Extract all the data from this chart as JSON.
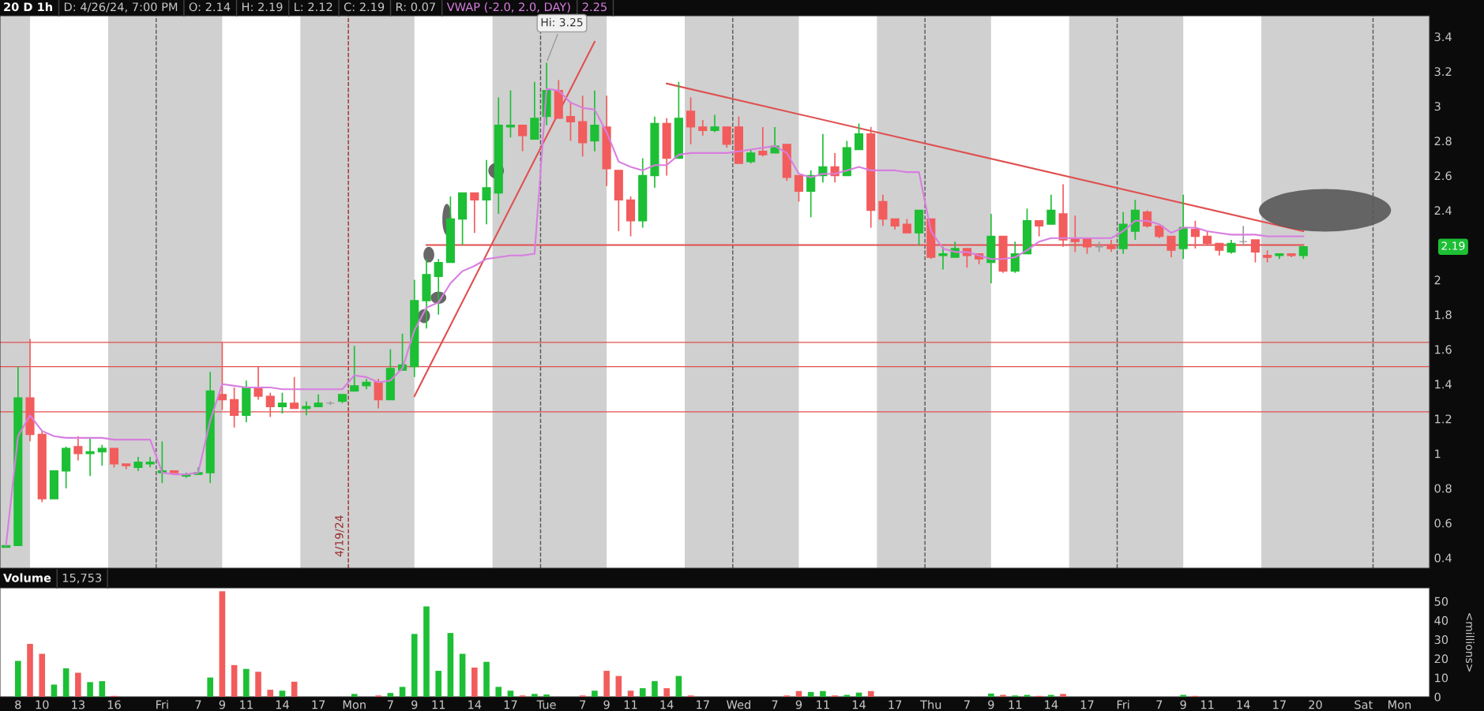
{
  "chart_data": [
    {
      "type": "candlestick",
      "title": "20 D 1h",
      "annotations": [
        "D: 4/26/24, 7:00 PM",
        "O: 2.14",
        "H: 2.19",
        "L: 2.12",
        "C: 2.19",
        "R: 0.07",
        "2.25",
        "2.19",
        "4/19/24",
        "Hi: 3.25"
      ],
      "categories": [
        null,
        null,
        null,
        null,
        null,
        null,
        null,
        null,
        null,
        null,
        null,
        null,
        null,
        null,
        null,
        null,
        null,
        null,
        null,
        null,
        null,
        null,
        null,
        null,
        null,
        null,
        null,
        null,
        null,
        null,
        null,
        null,
        null,
        null,
        null,
        null,
        null,
        null,
        null,
        null,
        null,
        null,
        null,
        null,
        null,
        null,
        null,
        null,
        null,
        null,
        null,
        null,
        null,
        null,
        null,
        null,
        null,
        null,
        null,
        null,
        null,
        null,
        null,
        null,
        null,
        null,
        null,
        null,
        null,
        null,
        null,
        null,
        null,
        null,
        null,
        null,
        null,
        null,
        null,
        null,
        null,
        null,
        null,
        null,
        null,
        null,
        null,
        null,
        null,
        null,
        null,
        null,
        null,
        null,
        null,
        null,
        null,
        null,
        null,
        null,
        null,
        null,
        null,
        null,
        null,
        null,
        null,
        null,
        null
      ],
      "series": [
        {
          "type": "candlestick",
          "ohlc": [
            [
              0.46,
              0.47,
              0.46,
              0.47
            ],
            [
              0.47,
              1.5,
              0.47,
              1.32
            ],
            [
              1.32,
              1.66,
              1.07,
              1.11
            ],
            [
              1.11,
              1.13,
              0.72,
              0.74
            ],
            [
              0.74,
              0.9,
              0.74,
              0.9
            ],
            [
              0.9,
              1.04,
              0.8,
              1.03
            ],
            [
              1.04,
              1.1,
              0.96,
              1.0
            ],
            [
              1.0,
              1.09,
              0.87,
              1.01
            ],
            [
              1.01,
              1.05,
              0.93,
              1.03
            ],
            [
              1.03,
              1.03,
              0.92,
              0.94
            ],
            [
              0.94,
              0.94,
              0.91,
              0.93
            ],
            [
              0.92,
              0.98,
              0.9,
              0.95
            ],
            [
              0.94,
              0.98,
              0.92,
              0.95
            ],
            [
              0.89,
              1.07,
              0.83,
              0.9
            ],
            [
              0.9,
              0.9,
              0.89,
              0.89
            ],
            [
              0.87,
              0.89,
              0.86,
              0.88
            ],
            [
              0.88,
              0.92,
              0.88,
              0.89
            ],
            [
              0.89,
              1.47,
              0.83,
              1.36
            ],
            [
              1.34,
              1.64,
              1.25,
              1.31
            ],
            [
              1.31,
              1.38,
              1.15,
              1.22
            ],
            [
              1.22,
              1.42,
              1.18,
              1.38
            ],
            [
              1.38,
              1.5,
              1.31,
              1.33
            ],
            [
              1.33,
              1.35,
              1.21,
              1.27
            ],
            [
              1.27,
              1.35,
              1.23,
              1.29
            ],
            [
              1.29,
              1.44,
              1.26,
              1.26
            ],
            [
              1.26,
              1.3,
              1.22,
              1.27
            ],
            [
              1.27,
              1.34,
              1.27,
              1.29
            ],
            [
              1.29,
              1.3,
              1.28,
              1.29
            ],
            [
              1.3,
              1.34,
              1.29,
              1.34
            ],
            [
              1.36,
              1.62,
              1.36,
              1.39
            ],
            [
              1.39,
              1.43,
              1.37,
              1.41
            ],
            [
              1.41,
              1.43,
              1.26,
              1.31
            ],
            [
              1.31,
              1.6,
              1.31,
              1.49
            ],
            [
              1.48,
              1.69,
              1.48,
              1.51
            ],
            [
              1.5,
              2.0,
              1.44,
              1.88
            ],
            [
              1.88,
              2.12,
              1.72,
              2.03
            ],
            [
              2.02,
              2.12,
              1.8,
              2.1
            ],
            [
              2.1,
              2.48,
              2.1,
              2.35
            ],
            [
              2.35,
              2.5,
              2.2,
              2.5
            ],
            [
              2.5,
              2.5,
              2.27,
              2.46
            ],
            [
              2.46,
              2.69,
              2.32,
              2.53
            ],
            [
              2.5,
              3.05,
              2.38,
              2.89
            ],
            [
              2.88,
              3.09,
              2.82,
              2.89
            ],
            [
              2.89,
              2.89,
              2.74,
              2.83
            ],
            [
              2.81,
              3.14,
              2.81,
              2.93
            ],
            [
              2.94,
              3.25,
              2.89,
              3.09
            ],
            [
              3.09,
              3.15,
              2.93,
              2.93
            ],
            [
              2.94,
              3.02,
              2.8,
              2.91
            ],
            [
              2.91,
              3.06,
              2.71,
              2.79
            ],
            [
              2.8,
              3.09,
              2.74,
              2.89
            ],
            [
              2.88,
              3.06,
              2.54,
              2.64
            ],
            [
              2.63,
              2.63,
              2.28,
              2.46
            ],
            [
              2.46,
              2.48,
              2.25,
              2.34
            ],
            [
              2.34,
              2.7,
              2.3,
              2.6
            ],
            [
              2.6,
              2.94,
              2.53,
              2.9
            ],
            [
              2.9,
              2.93,
              2.6,
              2.7
            ],
            [
              2.7,
              3.14,
              2.7,
              2.93
            ],
            [
              2.97,
              3.05,
              2.78,
              2.88
            ],
            [
              2.88,
              2.92,
              2.83,
              2.86
            ],
            [
              2.86,
              2.95,
              2.85,
              2.88
            ],
            [
              2.88,
              2.88,
              2.76,
              2.78
            ],
            [
              2.88,
              2.94,
              2.67,
              2.67
            ],
            [
              2.68,
              2.75,
              2.67,
              2.73
            ],
            [
              2.74,
              2.88,
              2.71,
              2.72
            ],
            [
              2.73,
              2.88,
              2.73,
              2.77
            ],
            [
              2.78,
              2.78,
              2.57,
              2.59
            ],
            [
              2.6,
              2.6,
              2.45,
              2.51
            ],
            [
              2.51,
              2.63,
              2.36,
              2.6
            ],
            [
              2.6,
              2.84,
              2.56,
              2.65
            ],
            [
              2.65,
              2.73,
              2.56,
              2.6
            ],
            [
              2.6,
              2.8,
              2.6,
              2.76
            ],
            [
              2.75,
              2.9,
              2.75,
              2.84
            ],
            [
              2.84,
              2.88,
              2.3,
              2.4
            ],
            [
              2.45,
              2.49,
              2.31,
              2.35
            ],
            [
              2.35,
              2.35,
              2.29,
              2.31
            ],
            [
              2.32,
              2.35,
              2.27,
              2.27
            ],
            [
              2.27,
              2.4,
              2.2,
              2.4
            ],
            [
              2.35,
              2.35,
              2.12,
              2.13
            ],
            [
              2.14,
              2.19,
              2.06,
              2.15
            ],
            [
              2.13,
              2.22,
              2.13,
              2.18
            ],
            [
              2.18,
              2.18,
              2.07,
              2.14
            ],
            [
              2.15,
              2.15,
              2.09,
              2.12
            ],
            [
              2.1,
              2.38,
              1.98,
              2.25
            ],
            [
              2.25,
              2.25,
              2.04,
              2.05
            ],
            [
              2.05,
              2.22,
              2.04,
              2.15
            ],
            [
              2.15,
              2.41,
              2.15,
              2.34
            ],
            [
              2.34,
              2.34,
              2.25,
              2.31
            ],
            [
              2.32,
              2.49,
              2.32,
              2.4
            ],
            [
              2.38,
              2.55,
              2.19,
              2.23
            ],
            [
              2.24,
              2.37,
              2.16,
              2.22
            ],
            [
              2.24,
              2.24,
              2.15,
              2.19
            ],
            [
              2.19,
              2.22,
              2.16,
              2.19
            ],
            [
              2.2,
              2.23,
              2.16,
              2.18
            ],
            [
              2.18,
              2.39,
              2.15,
              2.32
            ],
            [
              2.28,
              2.46,
              2.23,
              2.4
            ],
            [
              2.39,
              2.4,
              2.3,
              2.31
            ],
            [
              2.31,
              2.31,
              2.24,
              2.25
            ],
            [
              2.25,
              2.25,
              2.13,
              2.17
            ],
            [
              2.18,
              2.49,
              2.12,
              2.3
            ],
            [
              2.29,
              2.34,
              2.18,
              2.25
            ],
            [
              2.25,
              2.28,
              2.2,
              2.21
            ],
            [
              2.21,
              2.21,
              2.14,
              2.17
            ],
            [
              2.16,
              2.23,
              2.15,
              2.21
            ],
            [
              2.22,
              2.31,
              2.2,
              2.22
            ],
            [
              2.23,
              2.23,
              2.1,
              2.16
            ],
            [
              2.14,
              2.17,
              2.1,
              2.13
            ],
            [
              2.14,
              2.15,
              2.12,
              2.15
            ],
            [
              2.15,
              2.15,
              2.13,
              2.14
            ],
            [
              2.14,
              2.19,
              2.12,
              2.19
            ]
          ],
          "colors": [
            "#1dbf35",
            "#1dbf35",
            "#f25c5c",
            "#f25c5c",
            "#1dbf35",
            "#1dbf35",
            "#f25c5c",
            "#1dbf35",
            "#1dbf35",
            "#f25c5c",
            "#f25c5c",
            "#1dbf35",
            "#1dbf35",
            "#1dbf35",
            "#f25c5c",
            "#1dbf35",
            "#1dbf35",
            "#1dbf35",
            "#f25c5c",
            "#f25c5c",
            "#1dbf35",
            "#f25c5c",
            "#f25c5c",
            "#1dbf35",
            "#f25c5c",
            "#1dbf35",
            "#1dbf35",
            "#9a9a9a",
            "#1dbf35",
            "#1dbf35",
            "#1dbf35",
            "#f25c5c",
            "#1dbf35",
            "#1dbf35",
            "#1dbf35",
            "#1dbf35",
            "#1dbf35",
            "#1dbf35",
            "#1dbf35",
            "#f25c5c",
            "#1dbf35",
            "#1dbf35",
            "#1dbf35",
            "#f25c5c",
            "#1dbf35",
            "#1dbf35",
            "#f25c5c",
            "#f25c5c",
            "#f25c5c",
            "#1dbf35",
            "#f25c5c",
            "#f25c5c",
            "#f25c5c",
            "#1dbf35",
            "#1dbf35",
            "#f25c5c",
            "#1dbf35",
            "#f25c5c",
            "#f25c5c",
            "#1dbf35",
            "#f25c5c",
            "#f25c5c",
            "#1dbf35",
            "#f25c5c",
            "#1dbf35",
            "#f25c5c",
            "#f25c5c",
            "#1dbf35",
            "#1dbf35",
            "#f25c5c",
            "#1dbf35",
            "#1dbf35",
            "#f25c5c",
            "#f25c5c",
            "#f25c5c",
            "#f25c5c",
            "#1dbf35",
            "#f25c5c",
            "#1dbf35",
            "#1dbf35",
            "#f25c5c",
            "#f25c5c",
            "#1dbf35",
            "#f25c5c",
            "#1dbf35",
            "#1dbf35",
            "#f25c5c",
            "#1dbf35",
            "#f25c5c",
            "#f25c5c",
            "#f25c5c",
            "#9a9a9a",
            "#f25c5c",
            "#1dbf35",
            "#1dbf35",
            "#f25c5c",
            "#f25c5c",
            "#f25c5c",
            "#1dbf35",
            "#f25c5c",
            "#f25c5c",
            "#f25c5c",
            "#1dbf35",
            "#9a9a9a",
            "#f25c5c",
            "#f25c5c",
            "#1dbf35",
            "#f25c5c",
            "#1dbf35"
          ]
        },
        {
          "type": "line",
          "name": "VWAP (-2.0, 2.0, DAY)",
          "color": "#d87ee0",
          "values": [
            0.47,
            1.1,
            1.22,
            1.13,
            1.1,
            1.09,
            1.09,
            1.09,
            1.09,
            1.08,
            1.08,
            1.08,
            1.08,
            0.89,
            0.88,
            0.88,
            0.89,
            1.19,
            1.4,
            1.39,
            1.38,
            1.38,
            1.38,
            1.37,
            1.37,
            1.37,
            1.37,
            1.37,
            1.37,
            1.45,
            1.44,
            1.41,
            1.42,
            1.49,
            1.71,
            1.84,
            1.87,
            1.98,
            2.05,
            2.08,
            2.12,
            2.13,
            2.14,
            2.14,
            2.15,
            3.1,
            3.09,
            3.02,
            2.99,
            2.98,
            2.85,
            2.68,
            2.65,
            2.63,
            2.66,
            2.66,
            2.72,
            2.73,
            2.73,
            2.73,
            2.73,
            2.74,
            2.75,
            2.76,
            2.77,
            2.73,
            2.61,
            2.59,
            2.61,
            2.61,
            2.63,
            2.65,
            2.63,
            2.63,
            2.63,
            2.62,
            2.62,
            2.28,
            2.18,
            2.16,
            2.16,
            2.14,
            2.12,
            2.12,
            2.13,
            2.17,
            2.22,
            2.24,
            2.24,
            2.24,
            2.24,
            2.24,
            2.24,
            2.28,
            2.34,
            2.34,
            2.32,
            2.27,
            2.3,
            2.3,
            2.28,
            2.27,
            2.26,
            2.26,
            2.26,
            2.25,
            2.25,
            2.25,
            2.25
          ]
        },
        {
          "type": "line",
          "color": "#e05050",
          "values": [
            null,
            null,
            null,
            null,
            null,
            null,
            null,
            null,
            null,
            null,
            null,
            null,
            null,
            null,
            null,
            null,
            null,
            null,
            null,
            null,
            null,
            null,
            null,
            null,
            null,
            null,
            null,
            null,
            null,
            null,
            null,
            null,
            null,
            null,
            1.33,
            null,
            null,
            null,
            null,
            null,
            null,
            null,
            null,
            null,
            null,
            null,
            null,
            null,
            null,
            3.37,
            null,
            null,
            null,
            null,
            null,
            null,
            null,
            null,
            null,
            null,
            null,
            null,
            null,
            null,
            null,
            null,
            null,
            null,
            null,
            null,
            null,
            null,
            null,
            null,
            null,
            null,
            null,
            null,
            null,
            null,
            null,
            null,
            null,
            null,
            null,
            null,
            null,
            null,
            null,
            null,
            null,
            null,
            null,
            null,
            null,
            null,
            null,
            null,
            null,
            null,
            null,
            null,
            null,
            null,
            null,
            null,
            null,
            null,
            null
          ]
        },
        {
          "type": "line",
          "color": "#e05050",
          "values": [
            null,
            null,
            null,
            null,
            null,
            null,
            null,
            null,
            null,
            null,
            null,
            null,
            null,
            null,
            null,
            null,
            null,
            null,
            null,
            null,
            null,
            null,
            null,
            null,
            null,
            null,
            null,
            null,
            null,
            null,
            null,
            null,
            null,
            null,
            null,
            null,
            null,
            null,
            null,
            null,
            null,
            null,
            null,
            null,
            null,
            null,
            null,
            null,
            null,
            null,
            null,
            null,
            null,
            null,
            null,
            3.13,
            null,
            null,
            null,
            null,
            null,
            null,
            null,
            null,
            null,
            null,
            null,
            null,
            null,
            null,
            null,
            null,
            null,
            null,
            null,
            null,
            null,
            null,
            null,
            null,
            null,
            null,
            null,
            null,
            null,
            null,
            null,
            null,
            null,
            null,
            null,
            null,
            null,
            null,
            null,
            null,
            null,
            null,
            null,
            null,
            null,
            null,
            null,
            null,
            null,
            null,
            null,
            null,
            2.28
          ]
        },
        {
          "type": "line",
          "color": "#e05050",
          "values": [
            null,
            null,
            null,
            null,
            null,
            null,
            null,
            null,
            null,
            null,
            null,
            null,
            null,
            null,
            null,
            null,
            null,
            null,
            null,
            null,
            null,
            null,
            null,
            null,
            null,
            null,
            null,
            null,
            null,
            null,
            null,
            null,
            null,
            null,
            null,
            2.2,
            null,
            null,
            null,
            null,
            null,
            null,
            null,
            null,
            null,
            null,
            null,
            null,
            null,
            null,
            null,
            null,
            null,
            null,
            null,
            null,
            null,
            null,
            null,
            null,
            null,
            null,
            null,
            null,
            null,
            null,
            null,
            null,
            null,
            null,
            null,
            null,
            null,
            null,
            null,
            null,
            null,
            null,
            null,
            null,
            null,
            null,
            null,
            null,
            null,
            null,
            null,
            null,
            null,
            null,
            null,
            null,
            null,
            null,
            null,
            null,
            null,
            null,
            null,
            null,
            null,
            null,
            null,
            null,
            null,
            null,
            null,
            null,
            2.2
          ]
        }
      ],
      "ref_lines": [
        {
          "axis": "y",
          "value": 1.64,
          "color": "#e05050"
        },
        {
          "axis": "y",
          "value": 1.5,
          "color": "#e05050"
        },
        {
          "axis": "y",
          "value": 1.24,
          "color": "#e05050"
        }
      ],
      "ylim": [
        0.34,
        3.52
      ],
      "yticks": [
        0.4,
        0.6,
        0.8,
        1,
        1.2,
        1.4,
        1.6,
        1.8,
        2,
        2.4,
        2.6,
        2.8,
        3,
        3.2,
        3.4
      ],
      "tick_labels": "y"
    },
    {
      "type": "bar",
      "title": "Volume",
      "subtitle": "15,753",
      "ylabel": "<millions>",
      "categories": [
        null,
        "8",
        null,
        "10",
        null,
        null,
        "13",
        null,
        null,
        "16",
        null,
        null,
        null,
        "Fri",
        null,
        null,
        "7",
        null,
        "9",
        null,
        "11",
        null,
        null,
        "14",
        null,
        null,
        "17",
        null,
        null,
        "Mon",
        null,
        null,
        "7",
        null,
        "9",
        null,
        "11",
        null,
        null,
        "14",
        null,
        null,
        "17",
        null,
        null,
        "Tue",
        null,
        null,
        "7",
        null,
        "9",
        null,
        "11",
        null,
        null,
        "14",
        null,
        null,
        "17",
        null,
        null,
        "Wed",
        null,
        null,
        "7",
        null,
        "9",
        null,
        "11",
        null,
        null,
        "14",
        null,
        null,
        "17",
        null,
        null,
        "Thu",
        null,
        null,
        "7",
        null,
        "9",
        null,
        "11",
        null,
        null,
        "14",
        null,
        null,
        "17",
        null,
        null,
        "Fri",
        null,
        null,
        "7",
        null,
        "9",
        null,
        "11",
        null,
        null,
        "14",
        null,
        null,
        "17",
        null,
        null,
        "20",
        null,
        null,
        null,
        "Sat",
        null,
        null,
        "Mon",
        null,
        null
      ],
      "series": [
        {
          "values": [
            null,
            18.8,
            27.7,
            22.5,
            6.4,
            14.9,
            12.6,
            7.7,
            8.2,
            0.5,
            null,
            null,
            null,
            null,
            null,
            null,
            null,
            10.1,
            55.2,
            16.6,
            14.6,
            13.1,
            3.7,
            3.2,
            7.9,
            null,
            null,
            null,
            null,
            1.5,
            null,
            0.7,
            2.0,
            5.2,
            32.9,
            47.3,
            13.6,
            33.4,
            22.5,
            15.3,
            18.3,
            5.2,
            3.2,
            0.7,
            1.5,
            1.2,
            null,
            null,
            0.7,
            3.2,
            13.6,
            10.9,
            3.2,
            4.5,
            8.2,
            4.5,
            10.9,
            0.7,
            null,
            null,
            null,
            null,
            null,
            null,
            null,
            0.7,
            3.0,
            2.5,
            3.0,
            0.7,
            1.0,
            2.2,
            3.0,
            null,
            null,
            null,
            null,
            null,
            null,
            null,
            null,
            null,
            1.7,
            1.0,
            0.7,
            1.0,
            0.5,
            1.0,
            1.5,
            null,
            null,
            null,
            null,
            null,
            null,
            null,
            null,
            null,
            1.0,
            0.5,
            null,
            null,
            null,
            null,
            null,
            null,
            null,
            null,
            null,
            null,
            null,
            null,
            null,
            null,
            null,
            null,
            null,
            null,
            null
          ],
          "colors": [
            null,
            "#1dbf35",
            "#f25c5c",
            "#f25c5c",
            "#1dbf35",
            "#1dbf35",
            "#f25c5c",
            "#1dbf35",
            "#1dbf35",
            "#f25c5c",
            null,
            null,
            null,
            null,
            null,
            null,
            null,
            "#1dbf35",
            "#f25c5c",
            "#f25c5c",
            "#1dbf35",
            "#f25c5c",
            "#f25c5c",
            "#1dbf35",
            "#f25c5c",
            null,
            null,
            null,
            null,
            "#1dbf35",
            null,
            "#f25c5c",
            "#1dbf35",
            "#1dbf35",
            "#1dbf35",
            "#1dbf35",
            "#1dbf35",
            "#1dbf35",
            "#1dbf35",
            "#f25c5c",
            "#1dbf35",
            "#1dbf35",
            "#1dbf35",
            "#f25c5c",
            "#1dbf35",
            "#1dbf35",
            null,
            null,
            "#f25c5c",
            "#1dbf35",
            "#f25c5c",
            "#f25c5c",
            "#f25c5c",
            "#1dbf35",
            "#1dbf35",
            "#f25c5c",
            "#1dbf35",
            "#f25c5c",
            null,
            null,
            null,
            null,
            null,
            null,
            null,
            "#f25c5c",
            "#f25c5c",
            "#1dbf35",
            "#1dbf35",
            "#f25c5c",
            "#1dbf35",
            "#1dbf35",
            "#f25c5c",
            null,
            null,
            null,
            null,
            null,
            null,
            null,
            null,
            null,
            "#1dbf35",
            "#f25c5c",
            "#1dbf35",
            "#1dbf35",
            "#f25c5c",
            "#1dbf35",
            "#f25c5c",
            null,
            null,
            null,
            null,
            null,
            null,
            null,
            null,
            null,
            "#1dbf35",
            "#f25c5c",
            null,
            null,
            null,
            null,
            null,
            null,
            null,
            null,
            null,
            null,
            null,
            null,
            null,
            null,
            null,
            null,
            null,
            null,
            null
          ]
        }
      ],
      "ylim": [
        0,
        57
      ],
      "yticks": [
        0,
        10,
        20,
        30,
        40,
        50
      ]
    }
  ]
}
